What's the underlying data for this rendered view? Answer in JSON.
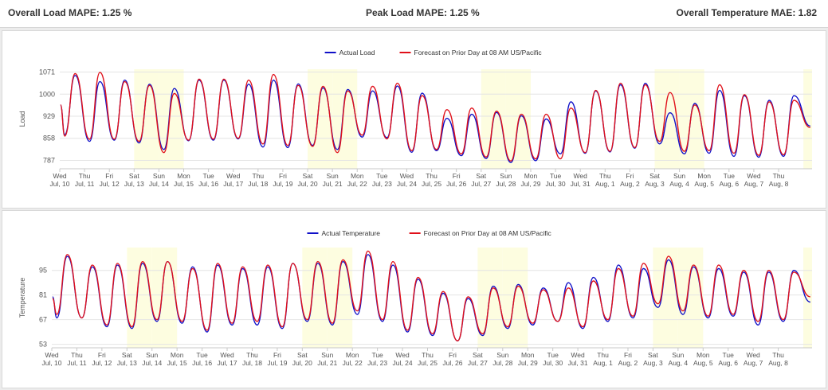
{
  "metrics": {
    "overall_load": "Overall Load MAPE: 1.25 %",
    "peak_load": "Peak Load MAPE: 1.25 %",
    "overall_temp": "Overall Temperature MAE: 1.82"
  },
  "colors": {
    "actual": "#1010c8",
    "forecast": "#e0101a",
    "weekend_band": "#fdfde0",
    "grid": "#e4e4e4"
  },
  "chart_data": [
    {
      "type": "line",
      "title": "",
      "ylabel": "Load",
      "xlabel": "",
      "legend_position": "top-center",
      "ylim": [
        760,
        1080
      ],
      "yticks": [
        787,
        858,
        929,
        1000,
        1071
      ],
      "x_tick_labels": [
        [
          "Wed",
          "Jul, 10"
        ],
        [
          "Thu",
          "Jul, 11"
        ],
        [
          "Fri",
          "Jul, 12"
        ],
        [
          "Sat",
          "Jul, 13"
        ],
        [
          "Sun",
          "Jul, 14"
        ],
        [
          "Mon",
          "Jul, 15"
        ],
        [
          "Tue",
          "Jul, 16"
        ],
        [
          "Wed",
          "Jul, 17"
        ],
        [
          "Thu",
          "Jul, 18"
        ],
        [
          "Fri",
          "Jul, 19"
        ],
        [
          "Sat",
          "Jul, 20"
        ],
        [
          "Sun",
          "Jul, 21"
        ],
        [
          "Mon",
          "Jul, 22"
        ],
        [
          "Tue",
          "Jul, 23"
        ],
        [
          "Wed",
          "Jul, 24"
        ],
        [
          "Thu",
          "Jul, 25"
        ],
        [
          "Fri",
          "Jul, 26"
        ],
        [
          "Sat",
          "Jul, 27"
        ],
        [
          "Sun",
          "Jul, 28"
        ],
        [
          "Mon",
          "Jul, 29"
        ],
        [
          "Tue",
          "Jul, 30"
        ],
        [
          "Wed",
          "Jul, 31"
        ],
        [
          "Thu",
          "Aug, 1"
        ],
        [
          "Fri",
          "Aug, 2"
        ],
        [
          "Sat",
          "Aug, 3"
        ],
        [
          "Sun",
          "Aug, 4"
        ],
        [
          "Mon",
          "Aug, 5"
        ],
        [
          "Tue",
          "Aug, 6"
        ],
        [
          "Wed",
          "Aug, 7"
        ],
        [
          "Thu",
          "Aug, 8"
        ]
      ],
      "series": [
        {
          "name": "Actual Load",
          "role": "actual",
          "daily_min": [
            870,
            848,
            852,
            843,
            822,
            850,
            852,
            856,
            830,
            828,
            835,
            822,
            862,
            860,
            813,
            818,
            802,
            793,
            780,
            786,
            808,
            810,
            814,
            826,
            840,
            808,
            810,
            800,
            797,
            800
          ],
          "daily_max": [
            1060,
            1040,
            1045,
            1032,
            1018,
            1045,
            1045,
            1032,
            1045,
            1033,
            1020,
            1015,
            1010,
            1026,
            1003,
            922,
            935,
            941,
            930,
            920,
            975,
            1010,
            1030,
            1035,
            940,
            970,
            1012,
            995,
            980,
            995
          ]
        },
        {
          "name": "Forecast on Prior Day at 08 AM US/Pacific",
          "role": "forecast",
          "daily_min": [
            865,
            855,
            855,
            848,
            812,
            852,
            855,
            858,
            840,
            835,
            832,
            812,
            868,
            856,
            818,
            822,
            808,
            798,
            785,
            792,
            792,
            812,
            816,
            828,
            848,
            816,
            818,
            810,
            803,
            805
          ],
          "daily_max": [
            1066,
            1070,
            1040,
            1028,
            1002,
            1048,
            1048,
            1045,
            1063,
            1028,
            1025,
            1010,
            1025,
            1035,
            995,
            950,
            955,
            945,
            935,
            935,
            955,
            1012,
            1035,
            1030,
            1005,
            965,
            1030,
            998,
            975,
            980
          ]
        }
      ]
    },
    {
      "type": "line",
      "title": "",
      "ylabel": "Temperature",
      "xlabel": "",
      "legend_position": "top-center",
      "ylim": [
        51,
        108
      ],
      "yticks": [
        53,
        67,
        81,
        95
      ],
      "x_tick_labels": [
        [
          "Wed",
          "Jul, 10"
        ],
        [
          "Thu",
          "Jul, 11"
        ],
        [
          "Fri",
          "Jul, 12"
        ],
        [
          "Sat",
          "Jul, 13"
        ],
        [
          "Sun",
          "Jul, 14"
        ],
        [
          "Mon",
          "Jul, 15"
        ],
        [
          "Tue",
          "Jul, 16"
        ],
        [
          "Wed",
          "Jul, 17"
        ],
        [
          "Thu",
          "Jul, 18"
        ],
        [
          "Fri",
          "Jul, 19"
        ],
        [
          "Sat",
          "Jul, 20"
        ],
        [
          "Sun",
          "Jul, 21"
        ],
        [
          "Mon",
          "Jul, 22"
        ],
        [
          "Tue",
          "Jul, 23"
        ],
        [
          "Wed",
          "Jul, 24"
        ],
        [
          "Thu",
          "Jul, 25"
        ],
        [
          "Fri",
          "Jul, 26"
        ],
        [
          "Sat",
          "Jul, 27"
        ],
        [
          "Sun",
          "Jul, 28"
        ],
        [
          "Mon",
          "Jul, 29"
        ],
        [
          "Tue",
          "Jul, 30"
        ],
        [
          "Wed",
          "Jul, 31"
        ],
        [
          "Thu",
          "Aug, 1"
        ],
        [
          "Fri",
          "Aug, 2"
        ],
        [
          "Sat",
          "Aug, 3"
        ],
        [
          "Sun",
          "Aug, 4"
        ],
        [
          "Mon",
          "Aug, 5"
        ],
        [
          "Tue",
          "Aug, 6"
        ],
        [
          "Wed",
          "Aug, 7"
        ],
        [
          "Thu",
          "Aug, 8"
        ]
      ],
      "series": [
        {
          "name": "Actual Temperature",
          "role": "actual",
          "daily_min": [
            68,
            68,
            63,
            62,
            66,
            65,
            60,
            64,
            64,
            62,
            66,
            64,
            70,
            66,
            60,
            58,
            55,
            58,
            62,
            64,
            66,
            62,
            66,
            68,
            74,
            70,
            68,
            69,
            64,
            66
          ],
          "daily_max": [
            103,
            97,
            98,
            99,
            100,
            97,
            98,
            96,
            97,
            99,
            99,
            100,
            104,
            98,
            90,
            82,
            79,
            86,
            87,
            85,
            88,
            91,
            98,
            96,
            101,
            97,
            96,
            94,
            94,
            95
          ],
          "first_value": 80,
          "last_value": 77
        },
        {
          "name": "Forecast on Prior Day at 08 AM US/Pacific",
          "role": "forecast",
          "daily_min": [
            70,
            68,
            64,
            63,
            67,
            66,
            61,
            65,
            66,
            63,
            67,
            65,
            72,
            67,
            61,
            59,
            55,
            59,
            63,
            65,
            66,
            63,
            67,
            69,
            76,
            72,
            69,
            70,
            66,
            67
          ],
          "daily_max": [
            104,
            98,
            99,
            100,
            100,
            96,
            99,
            97,
            98,
            99,
            100,
            101,
            106,
            100,
            91,
            83,
            80,
            85,
            86,
            84,
            85,
            89,
            96,
            99,
            103,
            98,
            98,
            95,
            95,
            94
          ],
          "first_value": 79,
          "last_value": 80
        }
      ]
    }
  ]
}
